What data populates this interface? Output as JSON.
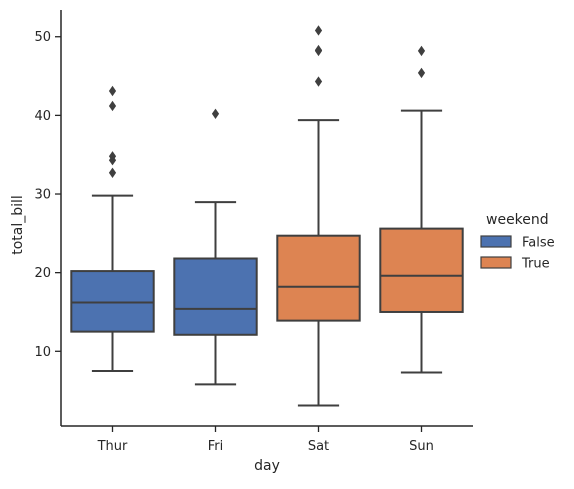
{
  "chart_data": {
    "type": "box",
    "title": "",
    "xlabel": "day",
    "ylabel": "total_bill",
    "categories": [
      "Thur",
      "Fri",
      "Sat",
      "Sun"
    ],
    "yticks": [
      10,
      20,
      30,
      40,
      50
    ],
    "ylim": [
      0.5,
      53.4
    ],
    "grid": false,
    "legend": {
      "title": "weekend",
      "placement": "right",
      "entries": [
        {
          "label": "False",
          "color": "#4c72b0"
        },
        {
          "label": "True",
          "color": "#dd8452"
        }
      ]
    },
    "colors": {
      "False": "#4c72b0",
      "True": "#dd8452",
      "lines": "#3f3f3f",
      "axes": "#262626"
    },
    "boxes": [
      {
        "category": "Thur",
        "group": "False",
        "whisker_low": 7.5,
        "q1": 12.5,
        "median": 16.2,
        "q3": 20.2,
        "whisker_high": 29.8,
        "outliers": [
          32.7,
          34.3,
          34.8,
          41.2,
          43.1
        ]
      },
      {
        "category": "Fri",
        "group": "False",
        "whisker_low": 5.8,
        "q1": 12.1,
        "median": 15.4,
        "q3": 21.8,
        "whisker_high": 28.97,
        "outliers": [
          40.2
        ]
      },
      {
        "category": "Sat",
        "group": "True",
        "whisker_low": 3.1,
        "q1": 13.9,
        "median": 18.2,
        "q3": 24.7,
        "whisker_high": 39.4,
        "outliers": [
          44.3,
          48.2,
          48.3,
          50.8
        ]
      },
      {
        "category": "Sun",
        "group": "True",
        "whisker_low": 7.3,
        "q1": 15.0,
        "median": 19.6,
        "q3": 25.6,
        "whisker_high": 40.6,
        "outliers": [
          45.4,
          48.2
        ]
      }
    ]
  }
}
